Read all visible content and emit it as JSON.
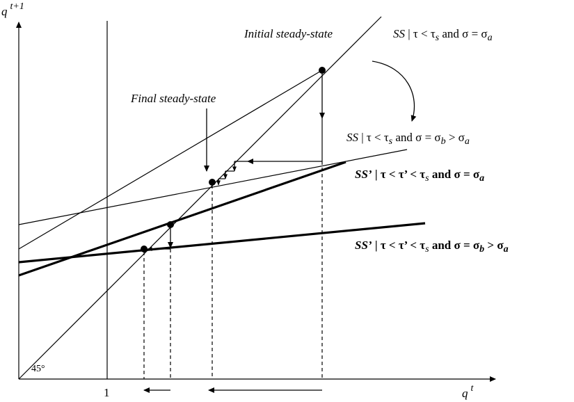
{
  "axes": {
    "y_label": "q",
    "y_sup": "t+1",
    "x_label": "q",
    "x_sup": "t",
    "one_label": "1",
    "angle_label": "45°"
  },
  "annotations": {
    "initial": "Initial steady-state",
    "final": "Final steady-state"
  },
  "curves": {
    "ss_a": {
      "prefix": "SS",
      "cond": " | τ < τ",
      "sub_s": "s",
      "and": " and σ = σ",
      "sub_a": "a"
    },
    "ss_b": {
      "prefix": "SS",
      "cond": " | τ < τ",
      "sub_s": "s",
      "and": " and σ = σ",
      "sub_b": "b",
      "gt": " > σ",
      "sub_a": "a"
    },
    "ssp_a": {
      "prefix": "SS’",
      "cond": " | τ < τ’ < τ",
      "sub_s": "s",
      "and": " and σ = σ",
      "sub_a": "a"
    },
    "ssp_b": {
      "prefix": "SS’",
      "cond": " | τ < τ’ < τ",
      "sub_s": "s",
      "and": " and σ = σ",
      "sub_b": "b",
      "gt": " > σ",
      "sub_a": "a"
    }
  }
}
